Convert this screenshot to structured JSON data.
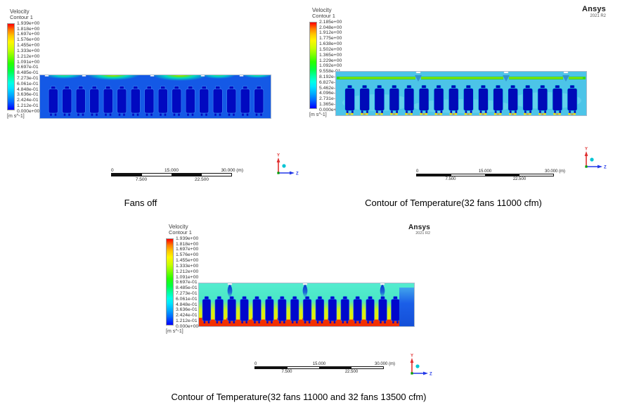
{
  "brand": {
    "name": "Ansys",
    "version": "2021 R2"
  },
  "panels": [
    {
      "legend": {
        "title": "Velocity",
        "subtitle": "Contour 1",
        "units": "[m s^-1]",
        "values": [
          "1.939e+00",
          "1.818e+00",
          "1.697e+00",
          "1.576e+00",
          "1.455e+00",
          "1.333e+00",
          "1.212e+00",
          "1.091e+00",
          "9.697e-01",
          "8.485e-01",
          "7.273e-01",
          "6.061e-01",
          "4.848e-01",
          "3.636e-01",
          "2.424e-01",
          "1.212e-01",
          "0.000e+00"
        ]
      },
      "ruler": {
        "t0": "0",
        "t1": "15.000",
        "t2": "30.000 (m)",
        "b0": "7.500",
        "b1": "22.500"
      },
      "axes": {
        "up": "Y",
        "right": "Z"
      },
      "caption": "Fans off"
    },
    {
      "legend": {
        "title": "Velocity",
        "subtitle": "Contour 1",
        "units": "[m s^-1]",
        "values": [
          "2.185e+00",
          "2.048e+00",
          "1.912e+00",
          "1.775e+00",
          "1.638e+00",
          "1.502e+00",
          "1.365e+00",
          "1.229e+00",
          "1.092e+00",
          "9.558e-01",
          "8.192e-01",
          "6.827e-01",
          "5.462e-01",
          "4.096e-01",
          "2.731e-01",
          "1.365e-01",
          "0.000e+00"
        ]
      },
      "ruler": {
        "t0": "0",
        "t1": "15.000",
        "t2": "30.000 (m)",
        "b0": "7.500",
        "b1": "22.500"
      },
      "axes": {
        "up": "Y",
        "right": "Z"
      },
      "caption": "Contour of Temperature(32 fans 11000 cfm)",
      "logo": {
        "name": "Ansys",
        "version": "2021 R2"
      }
    },
    {
      "legend": {
        "title": "Velocity",
        "subtitle": "Contour 1",
        "units": "[m s^-1]",
        "values": [
          "1.939e+00",
          "1.818e+00",
          "1.697e+00",
          "1.576e+00",
          "1.455e+00",
          "1.333e+00",
          "1.212e+00",
          "1.091e+00",
          "9.697e-01",
          "8.485e-01",
          "7.273e-01",
          "6.061e-01",
          "4.848e-01",
          "3.636e-01",
          "2.424e-01",
          "1.212e-01",
          "0.000e+00"
        ]
      },
      "ruler": {
        "t0": "0",
        "t1": "15.000",
        "t2": "30.000 (m)",
        "b0": "7.500",
        "b1": "22.500"
      },
      "axes": {
        "up": "Y",
        "right": "Z"
      },
      "caption": "Contour of Temperature(32 fans 11000 and 32 fans 13500 cfm)",
      "logo": {
        "name": "Ansys",
        "version": "2021 R2"
      }
    }
  ],
  "chart_data": [
    {
      "type": "heatmap",
      "title": "Fans off",
      "variable": "Velocity",
      "units": "m s^-1",
      "legend_position": "top-left",
      "colorbar_min": 0.0,
      "colorbar_max": 1.939,
      "colorbar_levels": [
        1.939,
        1.818,
        1.697,
        1.576,
        1.455,
        1.333,
        1.212,
        1.091,
        0.9697,
        0.8485,
        0.7273,
        0.6061,
        0.4848,
        0.3636,
        0.2424,
        0.1212,
        0.0
      ],
      "ruler_ticks_m": [
        0,
        7.5,
        15,
        22.5,
        30
      ],
      "description": "Cross-section velocity contour of building with 16 fan units; field mostly 0.1-0.4 m/s (blue), with 0.8-1.6 m/s green-yellow arcs at roof vent openings."
    },
    {
      "type": "heatmap",
      "title": "Contour of Temperature(32 fans 11000 cfm)",
      "variable": "Velocity",
      "units": "m s^-1",
      "legend_position": "top-left",
      "colorbar_min": 0.0,
      "colorbar_max": 2.185,
      "colorbar_levels": [
        2.185,
        2.048,
        1.912,
        1.775,
        1.638,
        1.502,
        1.365,
        1.229,
        1.092,
        0.9558,
        0.8192,
        0.6827,
        0.5462,
        0.4096,
        0.2731,
        0.1365,
        0.0
      ],
      "ruler_ticks_m": [
        0,
        7.5,
        15,
        22.5,
        30
      ],
      "description": "Fans on: cyan background ~0.4-0.6 m/s, continuous green ceiling jet ~1.3-1.6 m/s broken at three roof notches, dark-blue units with yellow high-velocity spots at floor outlets."
    },
    {
      "type": "heatmap",
      "title": "Contour of Temperature(32 fans 11000 and 32 fans 13500 cfm)",
      "variable": "Velocity",
      "units": "m s^-1",
      "legend_position": "top-left",
      "colorbar_min": 0.0,
      "colorbar_max": 1.939,
      "colorbar_levels": [
        1.939,
        1.818,
        1.697,
        1.576,
        1.455,
        1.333,
        1.212,
        1.091,
        0.9697,
        0.8485,
        0.7273,
        0.6061,
        0.4848,
        0.3636,
        0.2424,
        0.1212,
        0.0
      ],
      "ruler_ticks_m": [
        0,
        7.5,
        15,
        22.5,
        30
      ],
      "description": "All fans on: turquoise upper region ~0.6-0.8 m/s with dark-blue inflow plumes at three roof notches, yellow ~1.4-1.6 m/s between units, red ~1.9 m/s band along floor, royal-blue block at right end."
    }
  ]
}
